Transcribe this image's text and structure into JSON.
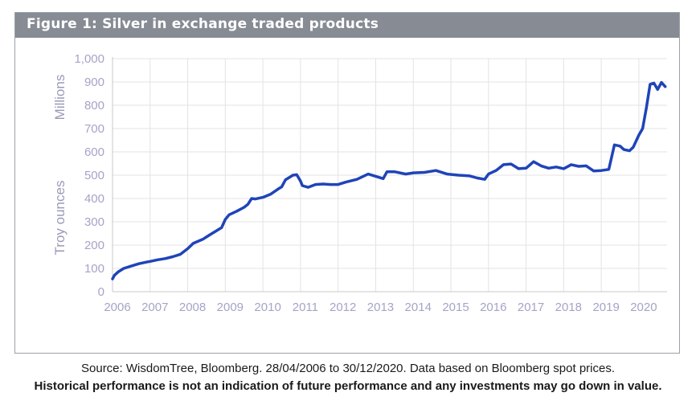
{
  "figure": {
    "title": "Figure 1: Silver in exchange traded products",
    "source": "Source: WisdomTree, Bloomberg. 28/04/2006 to 30/12/2020. Data based on Bloomberg spot prices.",
    "disclaimer": "Historical performance is not an indication of future performance and any investments may go down in value."
  },
  "colors": {
    "header_bg": "#868b94",
    "line": "#1f44b8",
    "grid": "#e3e3e3",
    "axis_text": "#a4a4c8"
  },
  "chart_data": {
    "type": "line",
    "ylabel": "Troy ounces",
    "yunit": "Millions",
    "xlim": [
      2006.0,
      2020.75
    ],
    "ylim": [
      0,
      1000
    ],
    "grid": true,
    "yticks": [
      0,
      100,
      200,
      300,
      400,
      500,
      600,
      700,
      800,
      900,
      1000
    ],
    "ytick_labels": [
      "0",
      "100",
      "200",
      "300",
      "400",
      "500",
      "600",
      "700",
      "800",
      "900",
      "1,000"
    ],
    "xticks": [
      2006,
      2007,
      2008,
      2009,
      2010,
      2011,
      2012,
      2013,
      2014,
      2015,
      2016,
      2017,
      2018,
      2019,
      2020
    ],
    "xtick_labels": [
      "2006",
      "2007",
      "2008",
      "2009",
      "2010",
      "2011",
      "2012",
      "2013",
      "2014",
      "2015",
      "2016",
      "2017",
      "2018",
      "2019",
      "2020"
    ],
    "series": [
      {
        "points": [
          [
            2006.0,
            55
          ],
          [
            2006.05,
            70
          ],
          [
            2006.15,
            85
          ],
          [
            2006.3,
            100
          ],
          [
            2006.5,
            110
          ],
          [
            2006.7,
            120
          ],
          [
            2006.9,
            127
          ],
          [
            2007.0,
            130
          ],
          [
            2007.2,
            137
          ],
          [
            2007.4,
            142
          ],
          [
            2007.6,
            150
          ],
          [
            2007.8,
            160
          ],
          [
            2008.0,
            185
          ],
          [
            2008.15,
            208
          ],
          [
            2008.4,
            225
          ],
          [
            2008.6,
            245
          ],
          [
            2008.75,
            260
          ],
          [
            2008.9,
            275
          ],
          [
            2009.0,
            310
          ],
          [
            2009.1,
            330
          ],
          [
            2009.3,
            345
          ],
          [
            2009.5,
            362
          ],
          [
            2009.6,
            375
          ],
          [
            2009.7,
            400
          ],
          [
            2009.8,
            398
          ],
          [
            2010.0,
            405
          ],
          [
            2010.2,
            418
          ],
          [
            2010.4,
            440
          ],
          [
            2010.5,
            450
          ],
          [
            2010.6,
            480
          ],
          [
            2010.7,
            490
          ],
          [
            2010.8,
            500
          ],
          [
            2010.9,
            502
          ],
          [
            2011.0,
            475
          ],
          [
            2011.05,
            455
          ],
          [
            2011.2,
            448
          ],
          [
            2011.4,
            460
          ],
          [
            2011.6,
            462
          ],
          [
            2011.8,
            460
          ],
          [
            2012.0,
            460
          ],
          [
            2012.2,
            470
          ],
          [
            2012.5,
            482
          ],
          [
            2012.8,
            505
          ],
          [
            2013.0,
            495
          ],
          [
            2013.2,
            485
          ],
          [
            2013.3,
            515
          ],
          [
            2013.5,
            515
          ],
          [
            2013.8,
            505
          ],
          [
            2014.0,
            510
          ],
          [
            2014.3,
            512
          ],
          [
            2014.6,
            520
          ],
          [
            2014.9,
            505
          ],
          [
            2015.2,
            500
          ],
          [
            2015.5,
            497
          ],
          [
            2015.7,
            488
          ],
          [
            2015.9,
            482
          ],
          [
            2016.0,
            505
          ],
          [
            2016.2,
            520
          ],
          [
            2016.4,
            545
          ],
          [
            2016.6,
            548
          ],
          [
            2016.8,
            528
          ],
          [
            2017.0,
            530
          ],
          [
            2017.2,
            558
          ],
          [
            2017.4,
            540
          ],
          [
            2017.6,
            530
          ],
          [
            2017.8,
            535
          ],
          [
            2018.0,
            528
          ],
          [
            2018.2,
            545
          ],
          [
            2018.4,
            538
          ],
          [
            2018.6,
            540
          ],
          [
            2018.8,
            518
          ],
          [
            2019.0,
            520
          ],
          [
            2019.2,
            525
          ],
          [
            2019.35,
            630
          ],
          [
            2019.5,
            625
          ],
          [
            2019.6,
            610
          ],
          [
            2019.75,
            605
          ],
          [
            2019.85,
            620
          ],
          [
            2020.0,
            672
          ],
          [
            2020.1,
            700
          ],
          [
            2020.2,
            790
          ],
          [
            2020.3,
            890
          ],
          [
            2020.4,
            895
          ],
          [
            2020.5,
            868
          ],
          [
            2020.6,
            898
          ],
          [
            2020.7,
            880
          ]
        ]
      }
    ]
  }
}
